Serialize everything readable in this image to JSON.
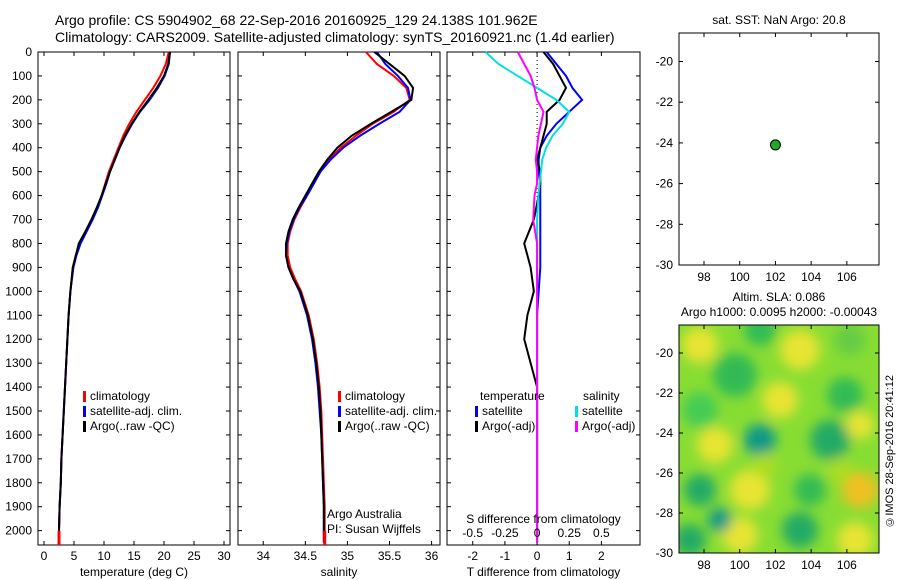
{
  "header": {
    "title_line1": "Argo profile: CS 5904902_68 22-Sep-2016 20160925_129 24.138S 101.962E",
    "title_line2": "Climatology: CARS2009. Satellite-adjusted climatology: synTS_20160921.nc (1.4d earlier)"
  },
  "map_top": {
    "title": "sat. SST: NaN Argo: 20.8",
    "xticks": [
      "98",
      "100",
      "102",
      "104",
      "106"
    ],
    "yticks": [
      "-20",
      "-22",
      "-24",
      "-26",
      "-28",
      "-30"
    ],
    "point": {
      "lon": 102.0,
      "lat": -24.1
    },
    "point_color": "#22aa22"
  },
  "map_bottom": {
    "title_line1": "Altim. SLA: 0.086",
    "title_line2": "Argo h1000: 0.0095 h2000: -0.00043",
    "xticks": [
      "98",
      "100",
      "102",
      "104",
      "106"
    ],
    "yticks": [
      "-20",
      "-22",
      "-24",
      "-26",
      "-28",
      "-30"
    ]
  },
  "credit": "©IMOS 28-Sep-2016 20:41:12",
  "legend_labels": {
    "climatology": "climatology",
    "satellite_adj": "satellite-adj. clim.",
    "argo_raw": "Argo(..raw -QC)",
    "temperature_head": "temperature",
    "salinity_head": "salinity",
    "satellite": "satellite",
    "argo_adj": "Argo(-adj)"
  },
  "annotation": {
    "line1": "Argo Australia",
    "line2": "PI: Susan Wijffels"
  },
  "colors": {
    "climatology": "#ff0000",
    "satellite": "#0000ff",
    "argo": "#000000",
    "s_satellite": "#00e0e0",
    "s_argo": "#ff00ff"
  },
  "chart_data": [
    {
      "type": "line",
      "panel": "temperature",
      "xlabel": "temperature (deg C)",
      "ylabel": "",
      "xlim": [
        -1,
        31
      ],
      "ylim": [
        2060,
        0
      ],
      "xticks": [
        0,
        5,
        10,
        15,
        20,
        25,
        30
      ],
      "yticks": [
        0,
        100,
        200,
        300,
        400,
        500,
        600,
        700,
        800,
        900,
        1000,
        1100,
        1200,
        1300,
        1400,
        1500,
        1600,
        1700,
        1800,
        1900,
        2000
      ],
      "depth": [
        0,
        50,
        100,
        150,
        200,
        250,
        300,
        350,
        400,
        450,
        500,
        550,
        600,
        650,
        700,
        750,
        800,
        850,
        900,
        1000,
        1100,
        1200,
        1300,
        1400,
        1500,
        1600,
        1700,
        1800,
        1900,
        2000,
        2050
      ],
      "series": [
        {
          "name": "climatology",
          "values": [
            20.8,
            20.3,
            19.4,
            18.2,
            16.8,
            15.4,
            14.2,
            13.2,
            12.4,
            11.6,
            10.8,
            10.2,
            9.6,
            8.9,
            8.0,
            7.0,
            6.0,
            5.3,
            4.8,
            4.4,
            4.1,
            3.9,
            3.7,
            3.5,
            3.3,
            3.1,
            2.9,
            2.8,
            2.6,
            2.5,
            2.5
          ]
        },
        {
          "name": "satellite-adj. clim.",
          "values": [
            21.0,
            20.8,
            20.1,
            19.0,
            17.6,
            16.0,
            14.7,
            13.6,
            12.6,
            11.8,
            11.0,
            10.4,
            9.7,
            9.0,
            8.1,
            7.1,
            6.1,
            5.4,
            4.9,
            4.4,
            4.1,
            3.9,
            3.7,
            3.5,
            3.3,
            3.1,
            2.9,
            2.8,
            2.6,
            2.5,
            2.5
          ]
        },
        {
          "name": "Argo(..raw -QC)",
          "values": [
            21.0,
            20.7,
            20.0,
            18.8,
            17.4,
            15.9,
            14.6,
            13.5,
            12.6,
            11.8,
            11.0,
            10.3,
            9.6,
            8.8,
            7.9,
            6.9,
            5.8,
            5.3,
            4.8,
            4.4,
            4.1,
            3.9,
            3.7,
            3.5,
            3.3,
            3.1,
            2.9,
            2.8,
            2.6,
            2.5,
            2.5
          ]
        }
      ]
    },
    {
      "type": "line",
      "panel": "salinity",
      "xlabel": "salinity",
      "ylabel": "",
      "xlim": [
        33.7,
        36.1
      ],
      "ylim": [
        2060,
        0
      ],
      "xticks": [
        34,
        34.5,
        35,
        35.5,
        36
      ],
      "depth": [
        0,
        50,
        100,
        150,
        200,
        250,
        300,
        350,
        400,
        450,
        500,
        550,
        600,
        650,
        700,
        750,
        800,
        850,
        900,
        950,
        1000,
        1100,
        1200,
        1300,
        1400,
        1500,
        1600,
        1700,
        1800,
        1900,
        2000,
        2050
      ],
      "series": [
        {
          "name": "climatology",
          "values": [
            35.22,
            35.35,
            35.55,
            35.7,
            35.74,
            35.55,
            35.3,
            35.1,
            34.92,
            34.78,
            34.68,
            34.6,
            34.52,
            34.44,
            34.37,
            34.32,
            34.29,
            34.29,
            34.32,
            34.38,
            34.45,
            34.54,
            34.6,
            34.64,
            34.67,
            34.69,
            34.7,
            34.71,
            34.72,
            34.73,
            34.73,
            34.73
          ]
        },
        {
          "name": "satellite-adj. clim.",
          "values": [
            35.35,
            35.45,
            35.6,
            35.72,
            35.75,
            35.62,
            35.38,
            35.15,
            34.95,
            34.8,
            34.68,
            34.6,
            34.52,
            34.43,
            34.36,
            34.31,
            34.28,
            34.27,
            34.3,
            34.36,
            34.43,
            34.52,
            34.58,
            34.62,
            34.65,
            34.67,
            34.69,
            34.7,
            34.71,
            34.72,
            34.72,
            34.72
          ]
        },
        {
          "name": "Argo(..raw -QC)",
          "values": [
            35.32,
            35.5,
            35.68,
            35.78,
            35.76,
            35.52,
            35.28,
            35.05,
            34.88,
            34.76,
            34.66,
            34.58,
            34.5,
            34.42,
            34.35,
            34.3,
            34.27,
            34.27,
            34.3,
            34.36,
            34.44,
            34.53,
            34.59,
            34.63,
            34.66,
            34.68,
            34.69,
            34.7,
            34.71,
            34.72,
            34.72,
            34.72
          ]
        }
      ]
    },
    {
      "type": "line",
      "panel": "difference",
      "xlabel": "T difference from climatology",
      "xlabel2": "S difference from climatology",
      "xlim": [
        -2.8,
        3.2
      ],
      "ylim": [
        2060,
        0
      ],
      "xticks": [
        -2,
        -1,
        0,
        1,
        2
      ],
      "s_ticks": [
        "-0.5",
        "-0.25",
        "0",
        "0.25",
        "0.5"
      ],
      "depth": [
        0,
        50,
        100,
        150,
        200,
        250,
        300,
        350,
        400,
        450,
        500,
        550,
        600,
        700,
        800,
        900,
        1000,
        1100,
        1200,
        1300,
        1400,
        1500,
        1700,
        1900,
        2050
      ],
      "series": [
        {
          "name": "temperature satellite",
          "values": [
            0.3,
            0.6,
            0.9,
            1.1,
            1.4,
            1.0,
            0.6,
            0.3,
            0.1,
            0.05,
            0.05,
            0.1,
            0.1,
            0.1,
            0.1,
            0.1,
            0.05,
            0.0,
            0.0,
            0.0,
            0.0,
            0.0,
            0.0,
            0.0,
            0.0
          ]
        },
        {
          "name": "temperature Argo(-adj)",
          "values": [
            0.2,
            0.5,
            0.7,
            0.9,
            0.7,
            0.3,
            0.3,
            0.2,
            0.1,
            0.0,
            0.1,
            0.1,
            0.05,
            -0.1,
            -0.4,
            -0.2,
            -0.1,
            -0.3,
            -0.4,
            -0.2,
            0.0,
            0.0,
            0.0,
            0.0,
            0.0
          ]
        },
        {
          "name": "salinity satellite",
          "values": [
            -0.4,
            -0.3,
            -0.15,
            0.0,
            0.15,
            0.25,
            0.2,
            0.12,
            0.07,
            0.04,
            0.03,
            0.02,
            0.01,
            0.0,
            0.0,
            0.0,
            0.0,
            0.0,
            0.0,
            0.0,
            0.0,
            0.0,
            0.0,
            0.0,
            0.0
          ]
        },
        {
          "name": "salinity Argo(-adj)",
          "values": [
            -0.15,
            -0.1,
            -0.05,
            -0.02,
            0.0,
            0.05,
            0.03,
            0.01,
            0.0,
            -0.01,
            0.0,
            0.0,
            -0.02,
            -0.03,
            0.0,
            0.0,
            0.0,
            0.0,
            0.0,
            0.0,
            0.0,
            0.0,
            0.0,
            0.0,
            0.0
          ]
        }
      ]
    }
  ]
}
